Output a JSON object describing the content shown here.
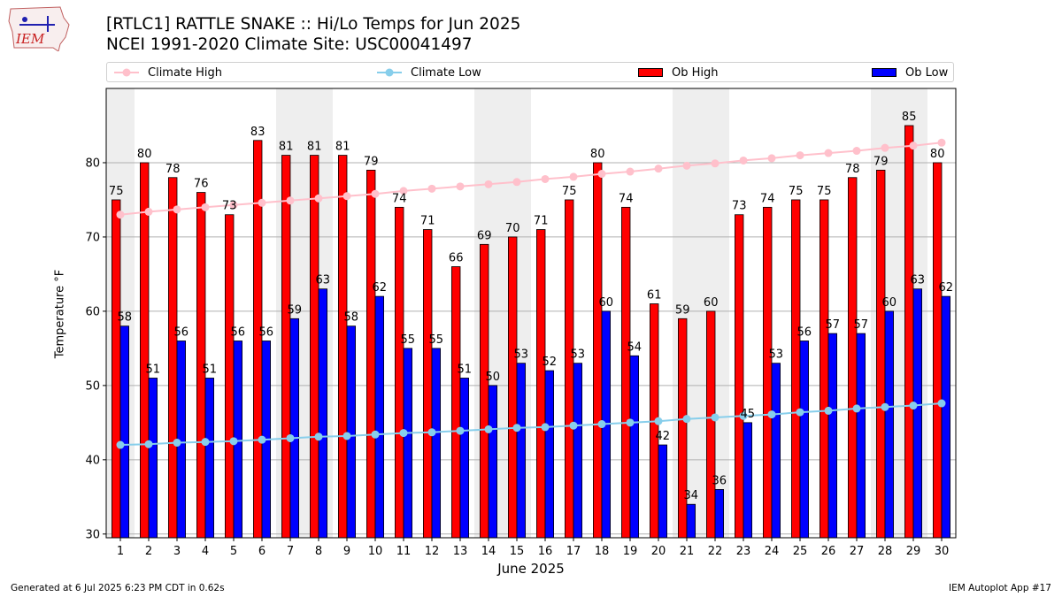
{
  "header": {
    "title_line1": "[RTLC1] RATTLE SNAKE :: Hi/Lo Temps for Jun 2025",
    "title_line2": "NCEI 1991-2020 Climate Site: USC00041497",
    "logo_text": "IEM"
  },
  "legend": {
    "climate_high": "Climate High",
    "climate_low": "Climate Low",
    "ob_high": "Ob High",
    "ob_low": "Ob Low"
  },
  "footer": {
    "left": "Generated at 6 Jul 2025 6:23 PM CDT in 0.62s",
    "right": "IEM Autoplot App #17"
  },
  "colors": {
    "ob_high": "#ff0000",
    "ob_low": "#0000ff",
    "climate_high": "#ffc0cb",
    "climate_low": "#87ceeb",
    "weekend_band": "#eeeeee",
    "grid": "#b0b0b0"
  },
  "chart_data": {
    "type": "bar",
    "xlabel": "June 2025",
    "ylabel": "Temperature °F",
    "ylim": [
      29.5,
      90
    ],
    "yticks": [
      30,
      40,
      50,
      60,
      70,
      80
    ],
    "grid": "horizontal",
    "legend_position": "top",
    "weekend_days": [
      1,
      7,
      8,
      14,
      15,
      21,
      22,
      28,
      29
    ],
    "categories": [
      "1",
      "2",
      "3",
      "4",
      "5",
      "6",
      "7",
      "8",
      "9",
      "10",
      "11",
      "12",
      "13",
      "14",
      "15",
      "16",
      "17",
      "18",
      "19",
      "20",
      "21",
      "22",
      "23",
      "24",
      "25",
      "26",
      "27",
      "28",
      "29",
      "30"
    ],
    "series": [
      {
        "name": "Ob High",
        "kind": "bar",
        "values": [
          75,
          80,
          78,
          76,
          73,
          83,
          81,
          81,
          81,
          79,
          74,
          71,
          66,
          69,
          70,
          71,
          75,
          80,
          74,
          61,
          59,
          60,
          73,
          74,
          75,
          75,
          78,
          79,
          85,
          80
        ]
      },
      {
        "name": "Ob Low",
        "kind": "bar",
        "values": [
          58,
          51,
          56,
          51,
          56,
          56,
          59,
          63,
          58,
          62,
          55,
          55,
          51,
          50,
          53,
          52,
          53,
          60,
          54,
          42,
          34,
          36,
          45,
          53,
          56,
          57,
          57,
          60,
          63,
          62
        ]
      },
      {
        "name": "Climate High",
        "kind": "line",
        "values": [
          73.0,
          73.4,
          73.7,
          74.0,
          74.3,
          74.6,
          74.9,
          75.2,
          75.5,
          75.8,
          76.2,
          76.5,
          76.8,
          77.1,
          77.4,
          77.8,
          78.1,
          78.5,
          78.8,
          79.2,
          79.6,
          79.9,
          80.3,
          80.6,
          81.0,
          81.3,
          81.6,
          82.0,
          82.3,
          82.7
        ]
      },
      {
        "name": "Climate Low",
        "kind": "line",
        "values": [
          42.0,
          42.1,
          42.3,
          42.4,
          42.5,
          42.7,
          42.9,
          43.1,
          43.2,
          43.4,
          43.6,
          43.7,
          43.9,
          44.1,
          44.3,
          44.4,
          44.6,
          44.8,
          45.0,
          45.2,
          45.5,
          45.7,
          45.9,
          46.1,
          46.4,
          46.6,
          46.9,
          47.1,
          47.3,
          47.6
        ]
      }
    ]
  }
}
